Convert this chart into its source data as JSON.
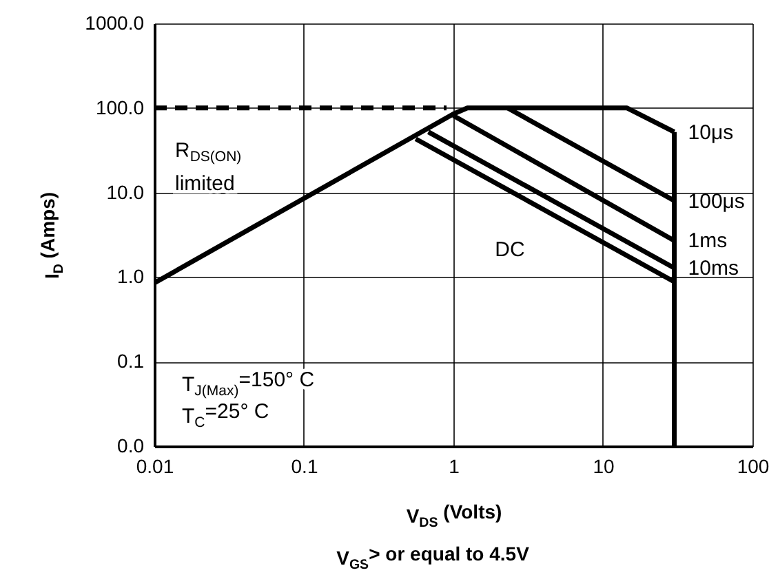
{
  "chart_data": {
    "type": "line",
    "xlabel": "V$_{DS}$ (Volts)",
    "ylabel": "I$_{D}$ (Amps)",
    "log": "xy",
    "grid": true,
    "marker": "none",
    "xlim": [
      0.01,
      100
    ],
    "xticks": [
      0.01,
      0.1,
      1,
      10,
      100
    ],
    "ylim": [
      0.01,
      1000
    ],
    "yticks": [
      {
        "value": 0.01,
        "label": "0.0"
      },
      {
        "value": 0.1,
        "label": "0.1"
      },
      {
        "value": 1,
        "label": "1.0"
      },
      {
        "value": 10,
        "label": "10.0"
      },
      {
        "value": 100,
        "label": "100.0"
      },
      {
        "value": 1000,
        "label": "1000.0"
      }
    ],
    "series": [
      {
        "color": "#000000",
        "line_style": "dashed",
        "x": [
          0.01,
          0.9
        ],
        "values": [
          100,
          100
        ]
      },
      {
        "name": "10μs",
        "color": "#000000",
        "line_style": "solid",
        "x": [
          0.01,
          1.0,
          1.24,
          14.5,
          30
        ],
        "values": [
          0.85,
          85,
          100,
          100,
          52
        ]
      },
      {
        "name": "100μs",
        "color": "#000000",
        "line_style": "solid",
        "x": [
          2.3,
          30
        ],
        "values": [
          100,
          8.0
        ]
      },
      {
        "name": "1ms",
        "color": "#000000",
        "line_style": "solid",
        "x": [
          1.0,
          30
        ],
        "values": [
          81,
          2.7
        ]
      },
      {
        "name": "10ms",
        "color": "#000000",
        "line_style": "solid",
        "x": [
          0.68,
          30
        ],
        "values": [
          52,
          1.28
        ]
      },
      {
        "color": "#000000",
        "line_style": "solid",
        "x": [
          0.56,
          30
        ],
        "values": [
          43,
          0.88
        ]
      },
      {
        "color": "#000000",
        "line_style": "solid",
        "x": [
          30,
          30
        ],
        "values": [
          52,
          0.01
        ]
      }
    ],
    "annotations": [
      "R$_{DS(ON)}$ limited",
      "T$_{J(Max)}$=150°  C",
      "T$_{C}$=25°  C",
      "V$_{GS}$> or equal to 4.5V",
      "DC"
    ]
  }
}
